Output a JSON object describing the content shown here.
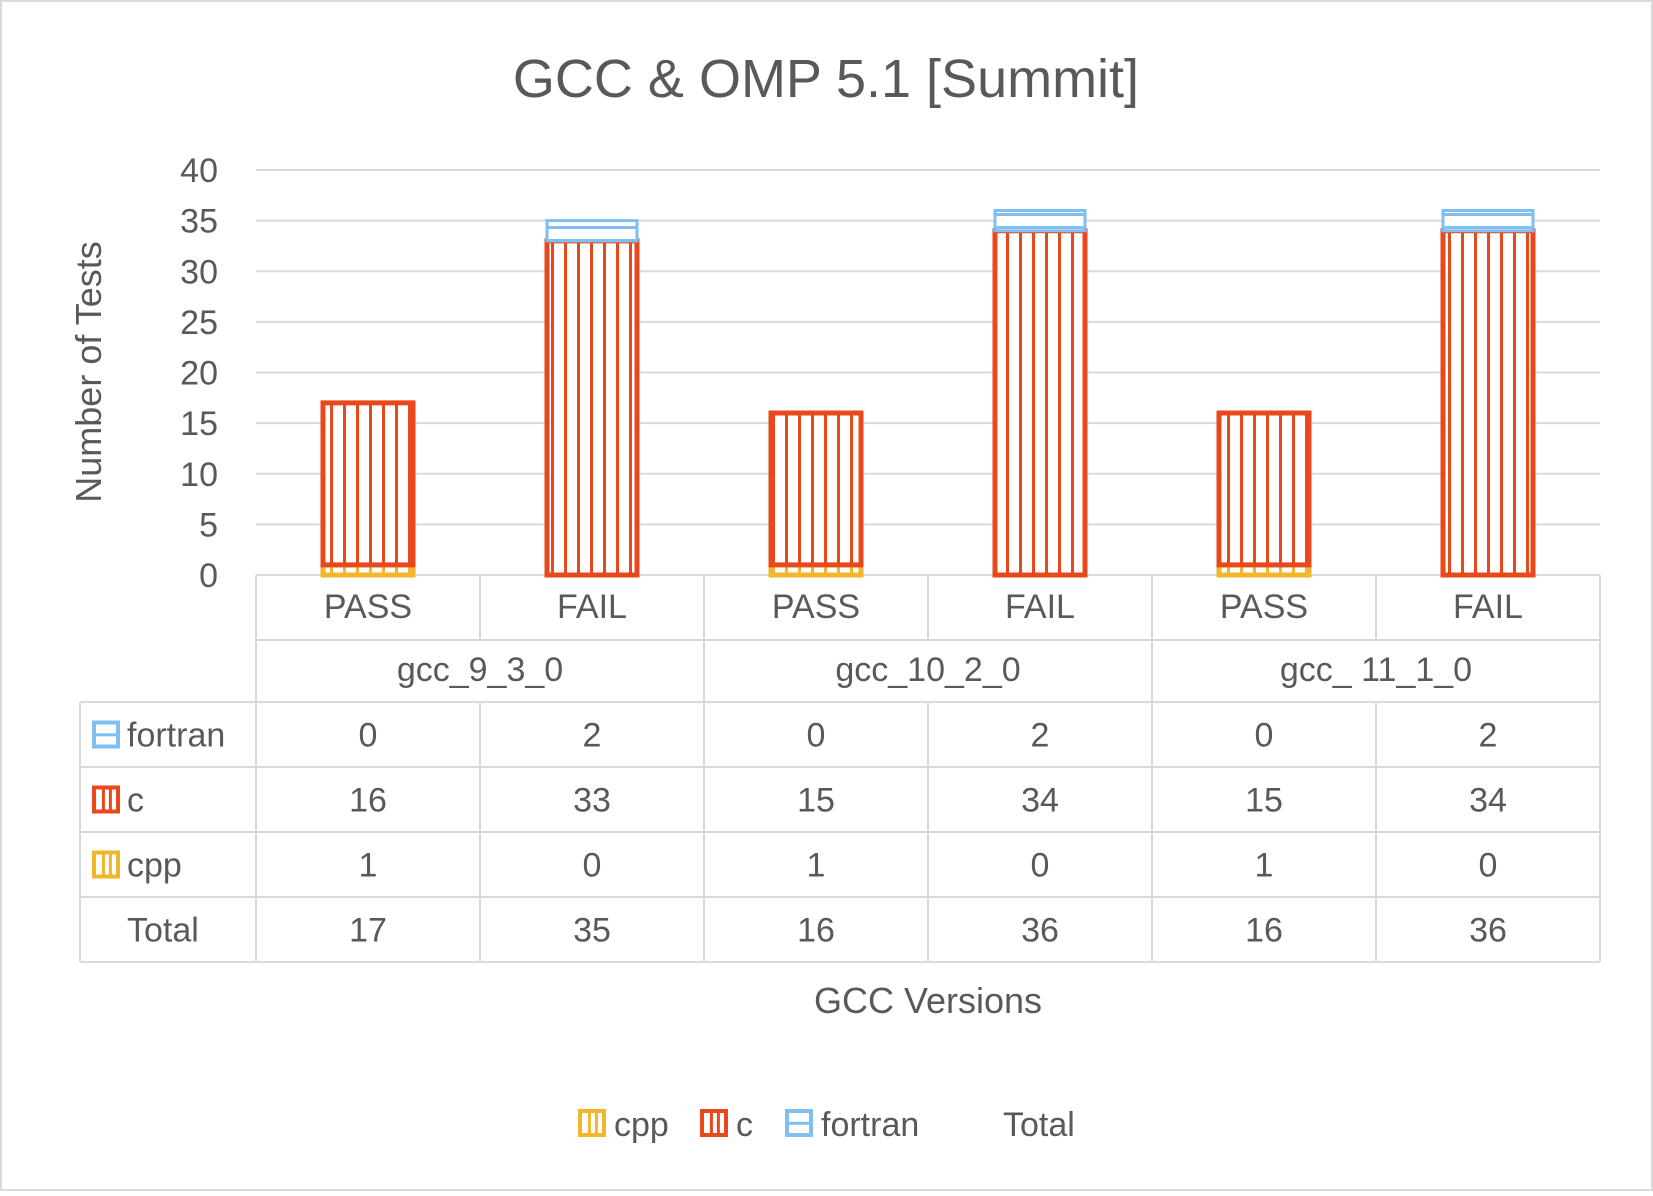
{
  "chart_data": {
    "type": "bar",
    "stacked": true,
    "title": "GCC & OMP 5.1 [Summit]",
    "ylabel": "Number of Tests",
    "xlabel": "GCC Versions",
    "ylim": [
      0,
      40
    ],
    "yticks": [
      0,
      5,
      10,
      15,
      20,
      25,
      30,
      35,
      40
    ],
    "grid": true,
    "legend_position": "bottom",
    "groups": [
      {
        "label": "gcc_9_3_0",
        "categories": [
          "PASS",
          "FAIL"
        ]
      },
      {
        "label": "gcc_10_2_0",
        "categories": [
          "PASS",
          "FAIL"
        ]
      },
      {
        "label": "gcc_ 11_1_0",
        "categories": [
          "PASS",
          "FAIL"
        ]
      }
    ],
    "series": [
      {
        "name": "cpp",
        "color": "#F2B52C",
        "pattern": "vertical-lines",
        "values": [
          1,
          0,
          1,
          0,
          1,
          0
        ]
      },
      {
        "name": "c",
        "color": "#E8481C",
        "pattern": "vertical-lines",
        "values": [
          16,
          33,
          15,
          34,
          15,
          34
        ]
      },
      {
        "name": "fortran",
        "color": "#7FBFF2",
        "pattern": "horizontal-lines",
        "values": [
          0,
          2,
          0,
          2,
          0,
          2
        ]
      }
    ],
    "totals": {
      "name": "Total",
      "values": [
        17,
        35,
        16,
        36,
        16,
        36
      ]
    },
    "table_row_order": [
      "fortran",
      "c",
      "cpp",
      "Total"
    ],
    "legend_order": [
      "cpp",
      "c",
      "fortran",
      "Total"
    ]
  }
}
